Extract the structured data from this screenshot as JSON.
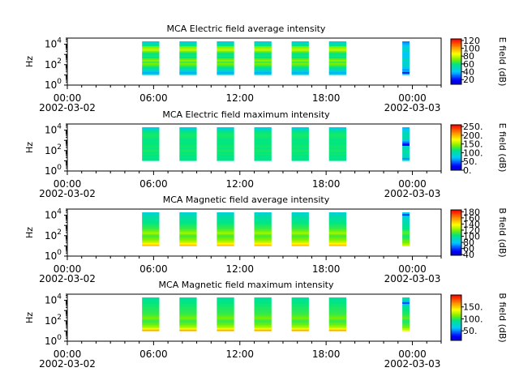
{
  "x_ticks": [
    {
      "label": "00:00",
      "date": "2002-03-02",
      "hour": 0
    },
    {
      "label": "06:00",
      "date": "",
      "hour": 6
    },
    {
      "label": "12:00",
      "date": "",
      "hour": 12
    },
    {
      "label": "18:00",
      "date": "",
      "hour": 18
    },
    {
      "label": "00:00",
      "date": "2002-03-03",
      "hour": 24
    }
  ],
  "chart_data": [
    {
      "type": "heatmap",
      "title": "MCA  Electric field average intensity",
      "ylabel": "Hz",
      "ylog": true,
      "ylim": [
        1,
        40000
      ],
      "xlim_hours": [
        0,
        26
      ],
      "y_ticks": [
        {
          "base": "10",
          "exp": "0",
          "value": 1
        },
        {
          "base": "10",
          "exp": "2",
          "value": 100
        },
        {
          "base": "10",
          "exp": "4",
          "value": 10000
        }
      ],
      "colorbar": {
        "label": "E field (dB)",
        "range": [
          8,
          124
        ],
        "ticks": [
          "120",
          "100",
          "80",
          "60",
          "40",
          "20"
        ],
        "tick_values": [
          120,
          100,
          80,
          60,
          40,
          20
        ]
      },
      "data_hour_ranges": [
        [
          5.2,
          6.4
        ],
        [
          7.8,
          9.0
        ],
        [
          10.4,
          11.6
        ],
        [
          13.0,
          14.2
        ],
        [
          15.6,
          16.8
        ],
        [
          18.2,
          19.4
        ],
        [
          23.3,
          23.8
        ]
      ],
      "band_values_db": [
        50,
        38,
        42,
        52,
        55,
        62,
        68,
        72,
        66,
        74,
        68,
        58,
        62,
        58,
        62,
        72,
        80,
        76,
        72,
        60,
        55,
        48
      ],
      "last_block_values_db": [
        48,
        20,
        38,
        36,
        40,
        44,
        50,
        48,
        45,
        52,
        48,
        42,
        44,
        40,
        42,
        46,
        50,
        48,
        46,
        40,
        38,
        34
      ]
    },
    {
      "type": "heatmap",
      "title": "MCA  Electric field maximum intensity",
      "ylabel": "Hz",
      "ylog": true,
      "ylim": [
        1,
        40000
      ],
      "xlim_hours": [
        0,
        26
      ],
      "y_ticks": [
        {
          "base": "10",
          "exp": "0",
          "value": 1
        },
        {
          "base": "10",
          "exp": "2",
          "value": 100
        },
        {
          "base": "10",
          "exp": "4",
          "value": 10000
        }
      ],
      "colorbar": {
        "label": "E field (dB)",
        "range": [
          0,
          260
        ],
        "ticks": [
          "250.",
          "200.",
          "150.",
          "100.",
          "50.",
          "0."
        ],
        "tick_values": [
          250,
          200,
          150,
          100,
          50,
          0
        ]
      },
      "data_hour_ranges": [
        [
          5.2,
          6.4
        ],
        [
          7.8,
          9.0
        ],
        [
          10.4,
          11.6
        ],
        [
          13.0,
          14.2
        ],
        [
          15.6,
          16.8
        ],
        [
          18.2,
          19.4
        ],
        [
          23.3,
          23.8
        ]
      ],
      "band_values_db": [
        115,
        112,
        118,
        116,
        120,
        118,
        122,
        120,
        118,
        121,
        119,
        117,
        118,
        116,
        118,
        120,
        122,
        121,
        119,
        115,
        100,
        85
      ],
      "last_block_values_db": [
        105,
        60,
        90,
        100,
        95,
        102,
        108,
        100,
        95,
        90,
        20,
        40,
        60,
        85,
        95,
        100,
        104,
        100,
        95,
        90,
        80,
        70
      ]
    },
    {
      "type": "heatmap",
      "title": "MCA  Magnetic field average intensity",
      "ylabel": "Hz",
      "ylog": true,
      "ylim": [
        1,
        40000
      ],
      "xlim_hours": [
        0,
        26
      ],
      "y_ticks": [
        {
          "base": "10",
          "exp": "0",
          "value": 1
        },
        {
          "base": "10",
          "exp": "2",
          "value": 100
        },
        {
          "base": "10",
          "exp": "4",
          "value": 10000
        }
      ],
      "colorbar": {
        "label": "B field (dB)",
        "range": [
          38,
          186
        ],
        "ticks": [
          "180",
          "160",
          "140",
          "120",
          "100",
          "80",
          "60",
          "40"
        ],
        "tick_values": [
          180,
          160,
          140,
          120,
          100,
          80,
          60,
          40
        ]
      },
      "data_hour_ranges": [
        [
          5.2,
          6.4
        ],
        [
          7.8,
          9.0
        ],
        [
          10.4,
          11.6
        ],
        [
          13.0,
          14.2
        ],
        [
          15.6,
          16.8
        ],
        [
          18.2,
          19.4
        ],
        [
          23.3,
          23.8
        ]
      ],
      "band_values_db": [
        150,
        140,
        130,
        124,
        120,
        116,
        112,
        118,
        126,
        120,
        116,
        112,
        110,
        108,
        106,
        104,
        102,
        100,
        98,
        96,
        92,
        88
      ],
      "last_block_values_db": [
        130,
        124,
        118,
        116,
        112,
        108,
        106,
        110,
        116,
        112,
        108,
        104,
        102,
        100,
        98,
        96,
        94,
        92,
        90,
        80,
        60,
        84
      ]
    },
    {
      "type": "heatmap",
      "title": "MCA  Magnetic field maximum intensity",
      "ylabel": "Hz",
      "ylog": true,
      "ylim": [
        1,
        40000
      ],
      "xlim_hours": [
        0,
        26
      ],
      "y_ticks": [
        {
          "base": "10",
          "exp": "0",
          "value": 1
        },
        {
          "base": "10",
          "exp": "2",
          "value": 100
        },
        {
          "base": "10",
          "exp": "4",
          "value": 10000
        }
      ],
      "colorbar": {
        "label": "B field (dB)",
        "range": [
          10,
          200
        ],
        "ticks": [
          "150.",
          "100.",
          "50."
        ],
        "tick_values": [
          150,
          100,
          50
        ]
      },
      "data_hour_ranges": [
        [
          5.2,
          6.4
        ],
        [
          7.8,
          9.0
        ],
        [
          10.4,
          11.6
        ],
        [
          13.0,
          14.2
        ],
        [
          15.6,
          16.8
        ],
        [
          18.2,
          19.4
        ],
        [
          23.3,
          23.8
        ]
      ],
      "band_values_db": [
        160,
        140,
        125,
        118,
        112,
        108,
        104,
        108,
        114,
        110,
        106,
        104,
        102,
        102,
        100,
        100,
        98,
        98,
        96,
        95,
        92,
        90
      ],
      "last_block_values_db": [
        135,
        125,
        115,
        110,
        106,
        102,
        100,
        104,
        110,
        106,
        102,
        100,
        98,
        96,
        94,
        92,
        90,
        70,
        40,
        60,
        80,
        85
      ]
    }
  ]
}
